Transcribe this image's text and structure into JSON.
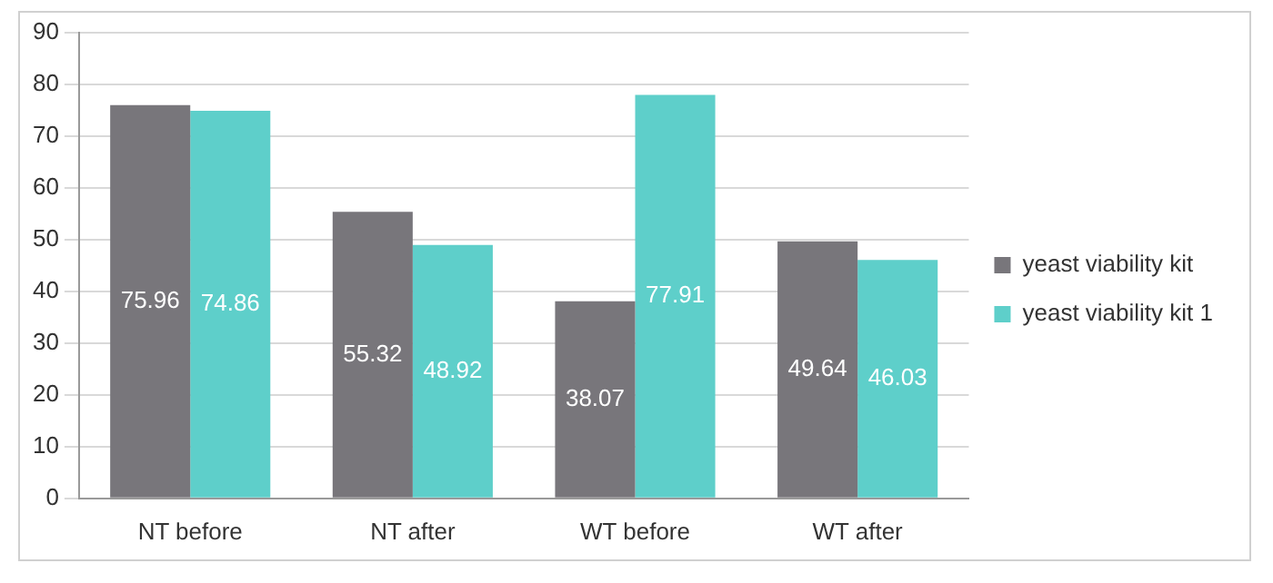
{
  "chart_data": {
    "type": "bar",
    "categories": [
      "NT before",
      "NT after",
      "WT before",
      "WT after"
    ],
    "series": [
      {
        "name": "yeast viability kit",
        "color": "#78767b",
        "values": [
          75.96,
          55.32,
          38.07,
          49.64
        ]
      },
      {
        "name": "yeast viability kit 1",
        "color": "#5ecfca",
        "values": [
          74.86,
          48.92,
          77.91,
          46.03
        ]
      }
    ],
    "ylim": [
      0,
      90
    ],
    "yticks": [
      0,
      10,
      20,
      30,
      40,
      50,
      60,
      70,
      80,
      90
    ],
    "grid": "y",
    "legend": "right",
    "data_labels": true
  }
}
